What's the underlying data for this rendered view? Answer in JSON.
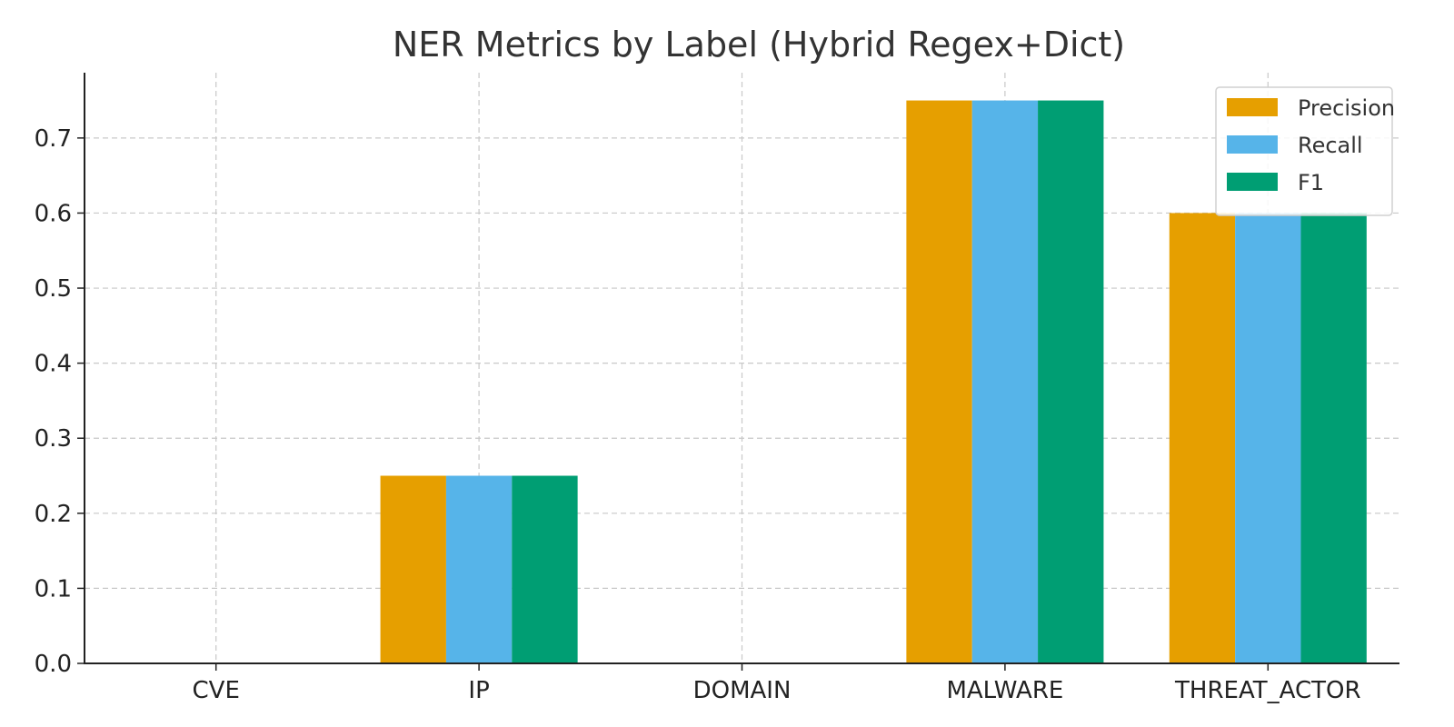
{
  "chart_data": {
    "type": "bar",
    "title": "NER Metrics by Label (Hybrid Regex+Dict)",
    "xlabel": "",
    "ylabel": "",
    "categories": [
      "CVE",
      "IP",
      "DOMAIN",
      "MALWARE",
      "THREAT_ACTOR"
    ],
    "series": [
      {
        "name": "Precision",
        "values": [
          0.0,
          0.25,
          0.0,
          0.75,
          0.6
        ],
        "color": "#E69F00"
      },
      {
        "name": "Recall",
        "values": [
          0.0,
          0.25,
          0.0,
          0.75,
          0.6
        ],
        "color": "#56B4E9"
      },
      {
        "name": "F1",
        "values": [
          0.0,
          0.25,
          0.0,
          0.75,
          0.6
        ],
        "color": "#009E73"
      }
    ],
    "ylim": [
      0,
      0.787
    ],
    "yticks": [
      "0.0",
      "0.1",
      "0.2",
      "0.3",
      "0.4",
      "0.5",
      "0.6",
      "0.7"
    ],
    "grid": true,
    "legend_position": "top-right"
  }
}
